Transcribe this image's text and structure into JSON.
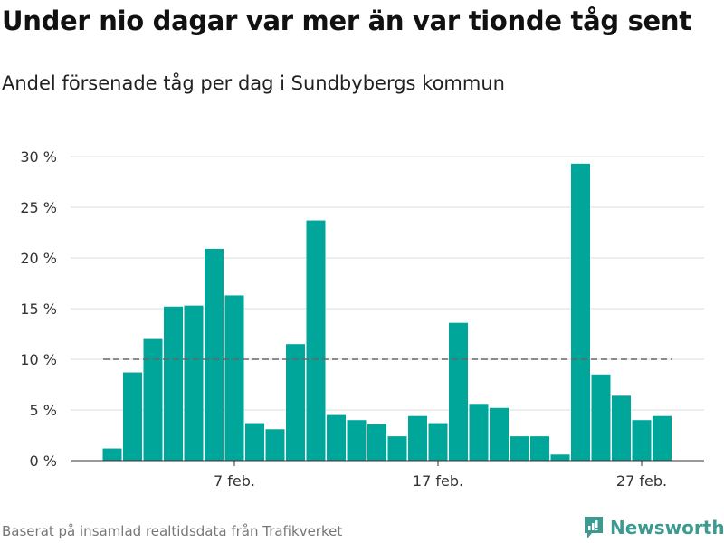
{
  "chart_data": {
    "type": "bar",
    "title": "Under nio dagar var mer än var tionde tåg sent",
    "subtitle": "Andel försenade tåg per dag i Sundbybergs kommun",
    "xlabel": "",
    "ylabel": "",
    "ylim": [
      0,
      30
    ],
    "yticks": [
      0,
      5,
      10,
      15,
      20,
      25,
      30
    ],
    "ytick_labels": [
      "0 %",
      "5 %",
      "10 %",
      "15 %",
      "20 %",
      "25 %",
      "30 %"
    ],
    "categories": [
      1,
      2,
      3,
      4,
      5,
      6,
      7,
      8,
      9,
      10,
      11,
      12,
      13,
      14,
      15,
      16,
      17,
      18,
      19,
      20,
      21,
      22,
      23,
      24,
      25,
      26,
      27,
      28
    ],
    "xtick_days": [
      7,
      17,
      27
    ],
    "xtick_labels": [
      "7 feb.",
      "17 feb.",
      "27 feb."
    ],
    "values": [
      1.2,
      8.7,
      12.0,
      15.2,
      15.3,
      20.9,
      16.3,
      3.7,
      3.1,
      11.5,
      23.7,
      4.5,
      4.0,
      3.6,
      2.4,
      4.4,
      3.7,
      13.6,
      5.6,
      5.2,
      2.4,
      2.4,
      0.6,
      29.3,
      8.5,
      6.4,
      4.0,
      4.4
    ],
    "reference_line": 10,
    "grid": true,
    "bar_color": "#00a699"
  },
  "footer": {
    "source": "Baserat på insamlad realtidsdata från Trafikverket",
    "brand": "Newsworthy"
  }
}
